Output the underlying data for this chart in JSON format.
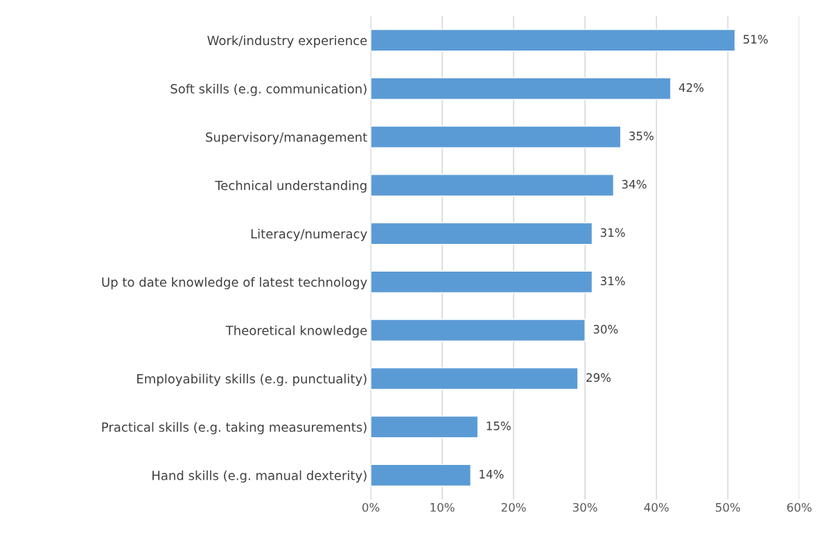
{
  "chart_data": {
    "type": "bar",
    "orientation": "horizontal",
    "categories": [
      "Work/industry experience",
      "Soft skills (e.g. communication)",
      "Supervisory/management",
      "Technical understanding",
      "Literacy/numeracy",
      "Up to date knowledge of latest technology",
      "Theoretical knowledge",
      "Employability skills (e.g. punctuality)",
      "Practical skills (e.g. taking measurements)",
      "Hand skills (e.g. manual dexterity)"
    ],
    "values": [
      51,
      42,
      35,
      34,
      31,
      31,
      30,
      29,
      15,
      14
    ],
    "value_labels": [
      "51%",
      "42%",
      "35%",
      "34%",
      "31%",
      "31%",
      "30%",
      "29%",
      "15%",
      "14%"
    ],
    "color": "#5b9bd5",
    "xlim": [
      0,
      60
    ],
    "xticks": [
      {
        "value": 0,
        "label": "0%"
      },
      {
        "value": 10,
        "label": "10%"
      },
      {
        "value": 20,
        "label": "20%"
      },
      {
        "value": 30,
        "label": "30%"
      },
      {
        "value": 40,
        "label": "40%"
      },
      {
        "value": 50,
        "label": "50%"
      },
      {
        "value": 60,
        "label": "60%"
      }
    ],
    "grid": "x"
  }
}
